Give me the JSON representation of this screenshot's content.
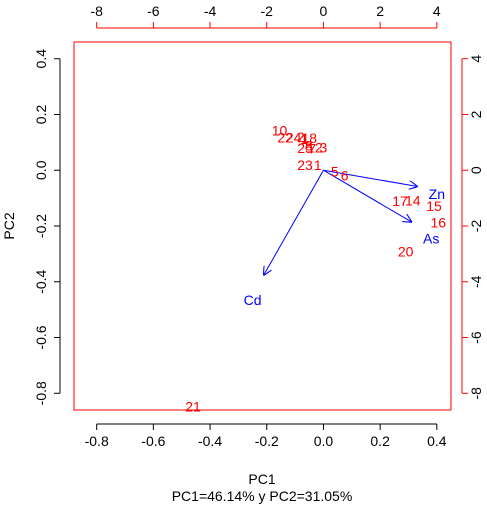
{
  "chart_data": {
    "type": "scatter",
    "subtype": "biplot",
    "xlabel": "PC1",
    "ylabel": "PC2",
    "subtitle": "PC1=46.14% y PC2=31.05%",
    "xlim": [
      -0.88,
      0.45
    ],
    "ylim": [
      -0.86,
      0.46
    ],
    "top_axis_lim": [
      -8.8,
      4.5
    ],
    "right_axis_lim": [
      -8.6,
      4.6
    ],
    "bottom_ticks": [
      "-0.8",
      "-0.6",
      "-0.4",
      "-0.2",
      "0.0",
      "0.2",
      "0.4"
    ],
    "bottom_tick_values": [
      -0.8,
      -0.6,
      -0.4,
      -0.2,
      0.0,
      0.2,
      0.4
    ],
    "left_ticks": [
      "-0.8",
      "-0.6",
      "-0.4",
      "-0.2",
      "0.0",
      "0.2",
      "0.4"
    ],
    "left_tick_values": [
      -0.8,
      -0.6,
      -0.4,
      -0.2,
      0.0,
      0.2,
      0.4
    ],
    "top_ticks": [
      "-8",
      "-6",
      "-4",
      "-2",
      "0",
      "2",
      "4"
    ],
    "top_tick_values": [
      -8,
      -6,
      -4,
      -2,
      0,
      2,
      4
    ],
    "right_ticks": [
      "-8",
      "-6",
      "-4",
      "-2",
      "0",
      "2",
      "4"
    ],
    "right_tick_values": [
      -8,
      -6,
      -4,
      -2,
      0,
      2,
      4
    ],
    "grid": false,
    "scores": [
      {
        "label": "10",
        "x": -0.155,
        "y": 0.142
      },
      {
        "label": "22",
        "x": -0.135,
        "y": 0.118
      },
      {
        "label": "24",
        "x": -0.105,
        "y": 0.118
      },
      {
        "label": "2",
        "x": -0.08,
        "y": 0.12
      },
      {
        "label": "1",
        "x": -0.068,
        "y": 0.112
      },
      {
        "label": "18",
        "x": -0.05,
        "y": 0.116
      },
      {
        "label": "25",
        "x": -0.065,
        "y": 0.08
      },
      {
        "label": "8",
        "x": -0.052,
        "y": 0.088
      },
      {
        "label": "7",
        "x": -0.04,
        "y": 0.078
      },
      {
        "label": "12",
        "x": -0.03,
        "y": 0.082
      },
      {
        "label": "3",
        "x": 0.0,
        "y": 0.082
      },
      {
        "label": "23",
        "x": -0.065,
        "y": 0.018
      },
      {
        "label": "1",
        "x": -0.02,
        "y": 0.018
      },
      {
        "label": "5",
        "x": 0.04,
        "y": -0.005
      },
      {
        "label": "6",
        "x": 0.075,
        "y": -0.018
      },
      {
        "label": "17",
        "x": 0.27,
        "y": -0.11
      },
      {
        "label": "14",
        "x": 0.315,
        "y": -0.108
      },
      {
        "label": "15",
        "x": 0.39,
        "y": -0.128
      },
      {
        "label": "16",
        "x": 0.405,
        "y": -0.188
      },
      {
        "label": "20",
        "x": 0.29,
        "y": -0.292
      },
      {
        "label": "21",
        "x": -0.46,
        "y": -0.848
      }
    ],
    "loadings": [
      {
        "name": "Zn",
        "x": 0.33,
        "y": -0.058,
        "label_x": 0.4,
        "label_y": -0.085
      },
      {
        "name": "As",
        "x": 0.31,
        "y": -0.185,
        "label_x": 0.38,
        "label_y": -0.245
      },
      {
        "name": "Cd",
        "x": -0.21,
        "y": -0.375,
        "label_x": -0.25,
        "label_y": -0.465
      }
    ],
    "colors": {
      "scores": "#ff0000",
      "loadings": "#0000ff",
      "frame": "#ff0000",
      "axes": "#000000"
    }
  }
}
